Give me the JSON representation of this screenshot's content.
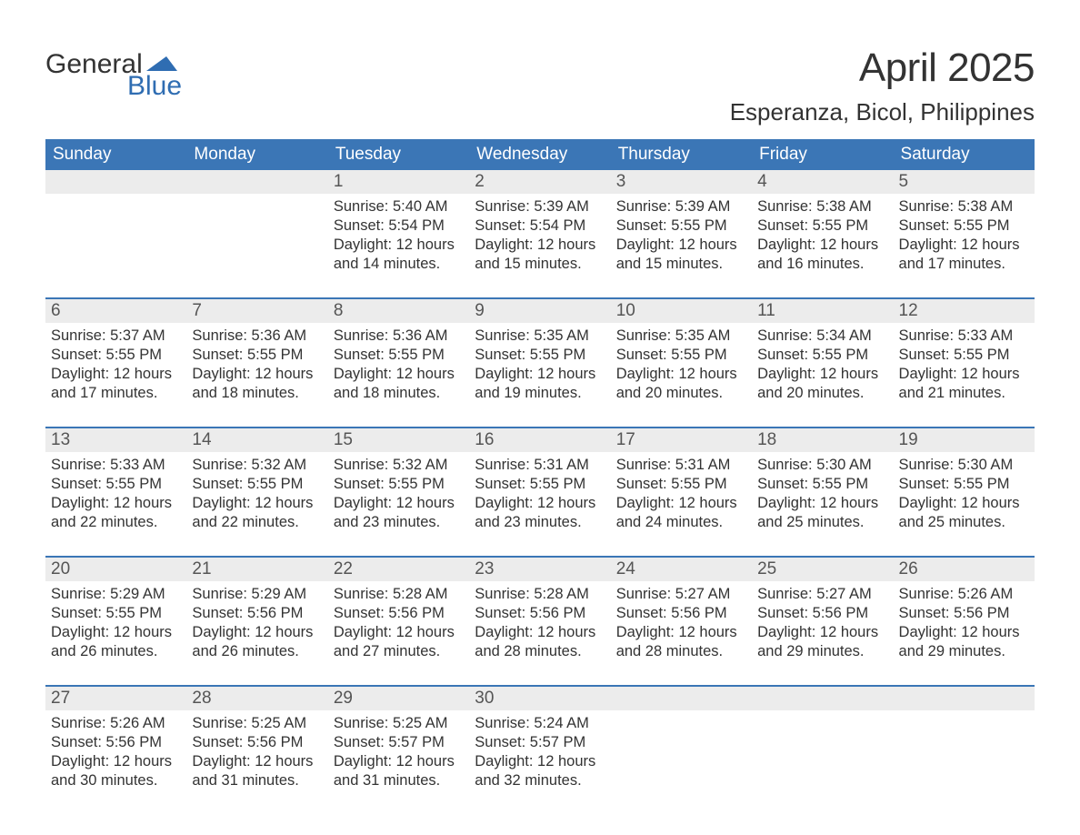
{
  "logo": {
    "line1": "General",
    "line2": "Blue",
    "flag_color": "#2f6db2"
  },
  "title": "April 2025",
  "location": "Esperanza, Bicol, Philippines",
  "colors": {
    "header_bg": "#3b76b6",
    "header_text": "#ffffff",
    "daynum_bg": "#ececec",
    "daynum_text": "#555555",
    "body_text": "#333333",
    "week_border": "#3b76b6",
    "page_bg": "#ffffff",
    "logo_text": "#333333",
    "logo_accent": "#2f6db2"
  },
  "typography": {
    "title_fontsize": 44,
    "location_fontsize": 26,
    "header_fontsize": 19,
    "daynum_fontsize": 19,
    "body_fontsize": 16.5,
    "font_family": "Arial"
  },
  "day_labels": [
    "Sunday",
    "Monday",
    "Tuesday",
    "Wednesday",
    "Thursday",
    "Friday",
    "Saturday"
  ],
  "weeks": [
    [
      {
        "num": "",
        "lines": []
      },
      {
        "num": "",
        "lines": []
      },
      {
        "num": "1",
        "lines": [
          "Sunrise: 5:40 AM",
          "Sunset: 5:54 PM",
          "Daylight: 12 hours",
          "and 14 minutes."
        ]
      },
      {
        "num": "2",
        "lines": [
          "Sunrise: 5:39 AM",
          "Sunset: 5:54 PM",
          "Daylight: 12 hours",
          "and 15 minutes."
        ]
      },
      {
        "num": "3",
        "lines": [
          "Sunrise: 5:39 AM",
          "Sunset: 5:55 PM",
          "Daylight: 12 hours",
          "and 15 minutes."
        ]
      },
      {
        "num": "4",
        "lines": [
          "Sunrise: 5:38 AM",
          "Sunset: 5:55 PM",
          "Daylight: 12 hours",
          "and 16 minutes."
        ]
      },
      {
        "num": "5",
        "lines": [
          "Sunrise: 5:38 AM",
          "Sunset: 5:55 PM",
          "Daylight: 12 hours",
          "and 17 minutes."
        ]
      }
    ],
    [
      {
        "num": "6",
        "lines": [
          "Sunrise: 5:37 AM",
          "Sunset: 5:55 PM",
          "Daylight: 12 hours",
          "and 17 minutes."
        ]
      },
      {
        "num": "7",
        "lines": [
          "Sunrise: 5:36 AM",
          "Sunset: 5:55 PM",
          "Daylight: 12 hours",
          "and 18 minutes."
        ]
      },
      {
        "num": "8",
        "lines": [
          "Sunrise: 5:36 AM",
          "Sunset: 5:55 PM",
          "Daylight: 12 hours",
          "and 18 minutes."
        ]
      },
      {
        "num": "9",
        "lines": [
          "Sunrise: 5:35 AM",
          "Sunset: 5:55 PM",
          "Daylight: 12 hours",
          "and 19 minutes."
        ]
      },
      {
        "num": "10",
        "lines": [
          "Sunrise: 5:35 AM",
          "Sunset: 5:55 PM",
          "Daylight: 12 hours",
          "and 20 minutes."
        ]
      },
      {
        "num": "11",
        "lines": [
          "Sunrise: 5:34 AM",
          "Sunset: 5:55 PM",
          "Daylight: 12 hours",
          "and 20 minutes."
        ]
      },
      {
        "num": "12",
        "lines": [
          "Sunrise: 5:33 AM",
          "Sunset: 5:55 PM",
          "Daylight: 12 hours",
          "and 21 minutes."
        ]
      }
    ],
    [
      {
        "num": "13",
        "lines": [
          "Sunrise: 5:33 AM",
          "Sunset: 5:55 PM",
          "Daylight: 12 hours",
          "and 22 minutes."
        ]
      },
      {
        "num": "14",
        "lines": [
          "Sunrise: 5:32 AM",
          "Sunset: 5:55 PM",
          "Daylight: 12 hours",
          "and 22 minutes."
        ]
      },
      {
        "num": "15",
        "lines": [
          "Sunrise: 5:32 AM",
          "Sunset: 5:55 PM",
          "Daylight: 12 hours",
          "and 23 minutes."
        ]
      },
      {
        "num": "16",
        "lines": [
          "Sunrise: 5:31 AM",
          "Sunset: 5:55 PM",
          "Daylight: 12 hours",
          "and 23 minutes."
        ]
      },
      {
        "num": "17",
        "lines": [
          "Sunrise: 5:31 AM",
          "Sunset: 5:55 PM",
          "Daylight: 12 hours",
          "and 24 minutes."
        ]
      },
      {
        "num": "18",
        "lines": [
          "Sunrise: 5:30 AM",
          "Sunset: 5:55 PM",
          "Daylight: 12 hours",
          "and 25 minutes."
        ]
      },
      {
        "num": "19",
        "lines": [
          "Sunrise: 5:30 AM",
          "Sunset: 5:55 PM",
          "Daylight: 12 hours",
          "and 25 minutes."
        ]
      }
    ],
    [
      {
        "num": "20",
        "lines": [
          "Sunrise: 5:29 AM",
          "Sunset: 5:55 PM",
          "Daylight: 12 hours",
          "and 26 minutes."
        ]
      },
      {
        "num": "21",
        "lines": [
          "Sunrise: 5:29 AM",
          "Sunset: 5:56 PM",
          "Daylight: 12 hours",
          "and 26 minutes."
        ]
      },
      {
        "num": "22",
        "lines": [
          "Sunrise: 5:28 AM",
          "Sunset: 5:56 PM",
          "Daylight: 12 hours",
          "and 27 minutes."
        ]
      },
      {
        "num": "23",
        "lines": [
          "Sunrise: 5:28 AM",
          "Sunset: 5:56 PM",
          "Daylight: 12 hours",
          "and 28 minutes."
        ]
      },
      {
        "num": "24",
        "lines": [
          "Sunrise: 5:27 AM",
          "Sunset: 5:56 PM",
          "Daylight: 12 hours",
          "and 28 minutes."
        ]
      },
      {
        "num": "25",
        "lines": [
          "Sunrise: 5:27 AM",
          "Sunset: 5:56 PM",
          "Daylight: 12 hours",
          "and 29 minutes."
        ]
      },
      {
        "num": "26",
        "lines": [
          "Sunrise: 5:26 AM",
          "Sunset: 5:56 PM",
          "Daylight: 12 hours",
          "and 29 minutes."
        ]
      }
    ],
    [
      {
        "num": "27",
        "lines": [
          "Sunrise: 5:26 AM",
          "Sunset: 5:56 PM",
          "Daylight: 12 hours",
          "and 30 minutes."
        ]
      },
      {
        "num": "28",
        "lines": [
          "Sunrise: 5:25 AM",
          "Sunset: 5:56 PM",
          "Daylight: 12 hours",
          "and 31 minutes."
        ]
      },
      {
        "num": "29",
        "lines": [
          "Sunrise: 5:25 AM",
          "Sunset: 5:57 PM",
          "Daylight: 12 hours",
          "and 31 minutes."
        ]
      },
      {
        "num": "30",
        "lines": [
          "Sunrise: 5:24 AM",
          "Sunset: 5:57 PM",
          "Daylight: 12 hours",
          "and 32 minutes."
        ]
      },
      {
        "num": "",
        "lines": []
      },
      {
        "num": "",
        "lines": []
      },
      {
        "num": "",
        "lines": []
      }
    ]
  ]
}
